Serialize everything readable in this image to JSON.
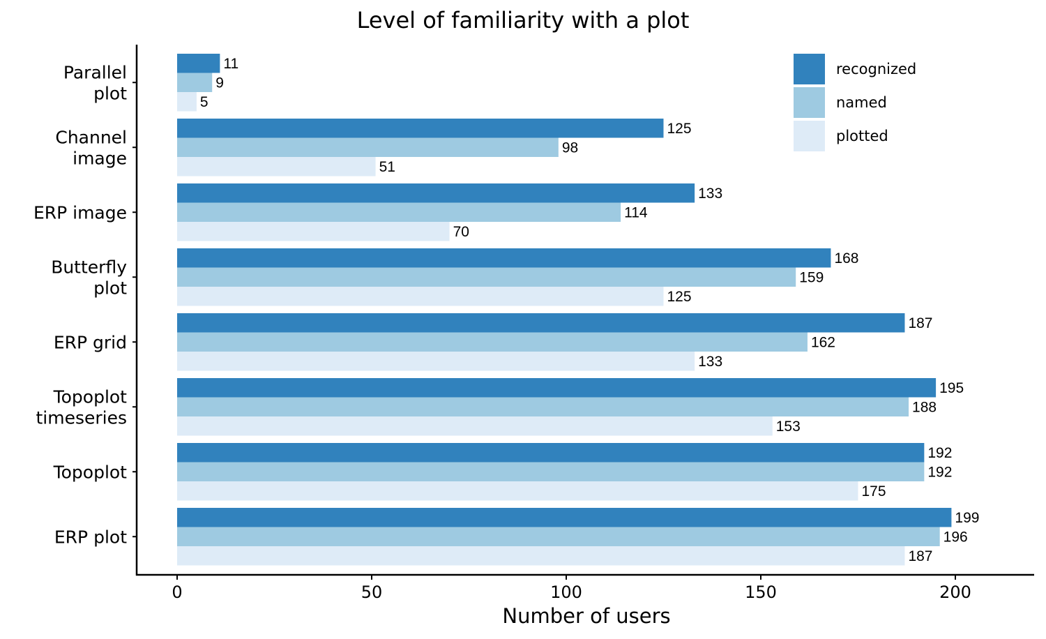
{
  "chart_data": {
    "type": "bar",
    "orientation": "horizontal",
    "title": "Level of familiarity with a plot",
    "xlabel": "Number of users",
    "ylabel": "",
    "xlim": [
      -10,
      220
    ],
    "xticks": [
      0,
      50,
      100,
      150,
      200
    ],
    "categories": [
      [
        "Parallel",
        "plot"
      ],
      [
        "Channel",
        "image"
      ],
      [
        "ERP image"
      ],
      [
        "Butterfly",
        "plot"
      ],
      [
        "ERP grid"
      ],
      [
        "Topoplot",
        "timeseries"
      ],
      [
        "Topoplot"
      ],
      [
        "ERP plot"
      ]
    ],
    "series": [
      {
        "name": "recognized",
        "color": "#3182bd",
        "values": [
          11,
          125,
          133,
          168,
          187,
          195,
          192,
          199
        ]
      },
      {
        "name": "named",
        "color": "#9ecae1",
        "values": [
          9,
          98,
          114,
          159,
          162,
          188,
          192,
          196
        ]
      },
      {
        "name": "plotted",
        "color": "#deebf7",
        "values": [
          5,
          51,
          70,
          125,
          133,
          153,
          175,
          187
        ]
      }
    ],
    "data_labels": true,
    "grid": false,
    "legend_position": "top-right"
  }
}
